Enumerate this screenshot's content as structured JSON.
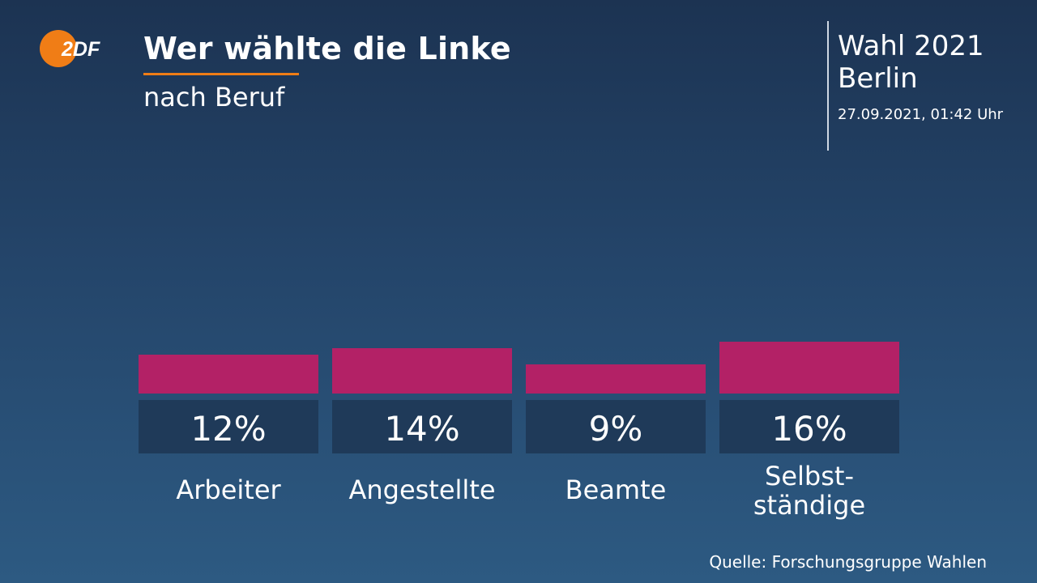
{
  "header": {
    "title": "Wer wählte die Linke",
    "subtitle": "nach Beruf",
    "logo_text": "2DF"
  },
  "side": {
    "line1": "Wahl 2021",
    "line2": "Berlin",
    "date": "27.09.2021, 01:42 Uhr"
  },
  "source": "Quelle: Forschungsgruppe Wahlen",
  "colors": {
    "bar": "#b32166",
    "label_box": "#1f3a59",
    "accent": "#f07d16"
  },
  "chart_data": {
    "type": "bar",
    "title": "Wer wählte die Linke",
    "subtitle": "nach Beruf",
    "categories": [
      "Arbeiter",
      "Angestellte",
      "Beamte",
      "Selbst-\nständige"
    ],
    "values": [
      12,
      14,
      9,
      16
    ],
    "value_labels": [
      "12%",
      "14%",
      "9%",
      "16%"
    ],
    "unit": "%",
    "grid": false,
    "legend": "none"
  }
}
